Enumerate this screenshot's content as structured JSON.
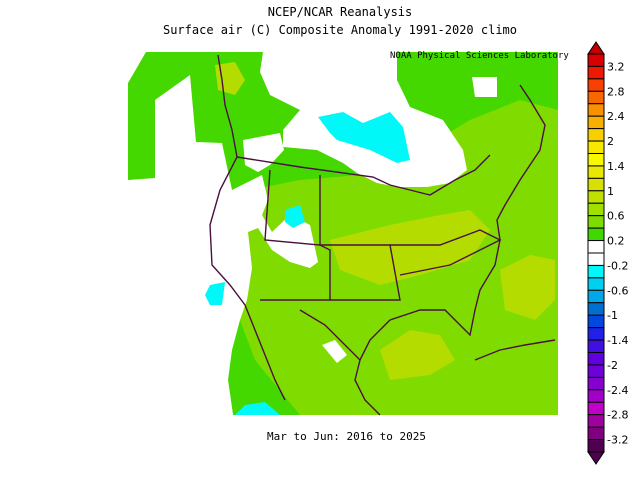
{
  "header": {
    "title": "NCEP/NCAR Reanalysis",
    "subtitle": "Surface air (C) Composite Anomaly 1991-2020 climo"
  },
  "map": {
    "credit": "NOAA Physical Sciences Laboratory",
    "footer": "Mar to Jun: 2016 to 2025",
    "region": "North America",
    "colors": {
      "base": "#44d800",
      "mid": "#80dc00",
      "warm": "#b4dc00",
      "neutral": "#ffffff",
      "cool": "#00f8f8",
      "outline": "#4a1040"
    }
  },
  "colorbar": {
    "labels": [
      "3.2",
      "2.8",
      "2.4",
      "2",
      "1.4",
      "1",
      "0.6",
      "0.2",
      "-0.2",
      "-0.6",
      "-1",
      "-1.4",
      "-2",
      "-2.4",
      "-2.8",
      "-3.2"
    ],
    "colors": [
      "#d80000",
      "#f01800",
      "#f84000",
      "#f86800",
      "#f89000",
      "#f8b000",
      "#f8d000",
      "#f8e800",
      "#f8f800",
      "#e8e800",
      "#d8e000",
      "#c0e000",
      "#a0e000",
      "#80dc00",
      "#40d800",
      "#ffffff",
      "#ffffff",
      "#00f8f8",
      "#00d0f0",
      "#00a8e8",
      "#0070d0",
      "#0048e0",
      "#2020e8",
      "#4010e0",
      "#6000e0",
      "#7000d8",
      "#8800d0",
      "#a000c8",
      "#c000c8",
      "#a000a0",
      "#800080",
      "#500050"
    ],
    "top_arrow_color": "#c00000",
    "bottom_arrow_color": "#500050"
  }
}
